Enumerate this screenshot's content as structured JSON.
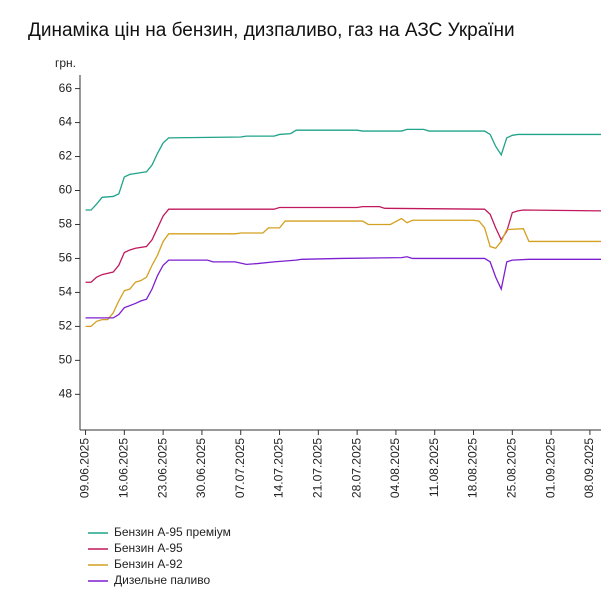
{
  "chart_data": {
    "type": "line",
    "title": "Динаміка цін на бензин, дизпаливо, газ на АЗС України",
    "y_label": "грн.",
    "xlim": [
      "08.06.2025",
      "10.09.2025"
    ],
    "xticks": [
      "09.06.2025",
      "16.06.2025",
      "23.06.2025",
      "30.06.2025",
      "07.07.2025",
      "14.07.2025",
      "21.07.2025",
      "28.07.2025",
      "04.08.2025",
      "11.08.2025",
      "18.08.2025",
      "25.08.2025",
      "01.09.2025",
      "08.09.2025"
    ],
    "ylim": [
      45.9,
      66.8
    ],
    "yticks": [
      48,
      50,
      52,
      54,
      56,
      58,
      60,
      62,
      64,
      66
    ],
    "legend": "bottom-left",
    "series": [
      {
        "name": "Бензин А-95 преміум",
        "color": "#1fa38a",
        "x": [
          "09.06.2025",
          "10.06.2025",
          "11.06.2025",
          "12.06.2025",
          "14.06.2025",
          "15.06.2025",
          "16.06.2025",
          "17.06.2025",
          "19.06.2025",
          "20.06.2025",
          "21.06.2025",
          "22.06.2025",
          "23.06.2025",
          "24.06.2025",
          "07.07.2025",
          "08.07.2025",
          "13.07.2025",
          "14.07.2025",
          "16.07.2025",
          "17.07.2025",
          "28.07.2025",
          "29.07.2025",
          "05.08.2025",
          "06.08.2025",
          "09.08.2025",
          "10.08.2025",
          "20.08.2025",
          "21.08.2025",
          "22.08.2025",
          "23.08.2025",
          "24.08.2025",
          "25.08.2025",
          "26.08.2025",
          "10.09.2025"
        ],
        "values": [
          58.85,
          58.85,
          59.2,
          59.6,
          59.65,
          59.8,
          60.8,
          60.95,
          61.05,
          61.1,
          61.5,
          62.2,
          62.8,
          63.1,
          63.15,
          63.2,
          63.2,
          63.3,
          63.35,
          63.55,
          63.55,
          63.5,
          63.5,
          63.6,
          63.6,
          63.5,
          63.5,
          63.3,
          62.6,
          62.1,
          63.1,
          63.25,
          63.3,
          63.3
        ]
      },
      {
        "name": "Бензин А-95",
        "color": "#c0185c",
        "x": [
          "09.06.2025",
          "10.06.2025",
          "11.06.2025",
          "12.06.2025",
          "14.06.2025",
          "15.06.2025",
          "16.06.2025",
          "17.06.2025",
          "18.06.2025",
          "20.06.2025",
          "21.06.2025",
          "22.06.2025",
          "23.06.2025",
          "24.06.2025",
          "13.07.2025",
          "14.07.2025",
          "28.07.2025",
          "29.07.2025",
          "01.08.2025",
          "02.08.2025",
          "20.08.2025",
          "21.08.2025",
          "22.08.2025",
          "23.08.2025",
          "24.08.2025",
          "25.08.2025",
          "26.08.2025",
          "27.08.2025",
          "10.09.2025"
        ],
        "values": [
          54.6,
          54.6,
          54.9,
          55.05,
          55.2,
          55.6,
          56.35,
          56.5,
          56.6,
          56.7,
          57.1,
          57.8,
          58.5,
          58.9,
          58.9,
          59.0,
          59.0,
          59.05,
          59.05,
          58.95,
          58.9,
          58.6,
          57.8,
          57.1,
          57.6,
          58.7,
          58.8,
          58.85,
          58.8
        ]
      },
      {
        "name": "Бензин А-92",
        "color": "#d4a020",
        "x": [
          "09.06.2025",
          "10.06.2025",
          "11.06.2025",
          "12.06.2025",
          "13.06.2025",
          "14.06.2025",
          "15.06.2025",
          "16.06.2025",
          "17.06.2025",
          "18.06.2025",
          "19.06.2025",
          "20.06.2025",
          "21.06.2025",
          "22.06.2025",
          "23.06.2025",
          "24.06.2025",
          "06.07.2025",
          "07.07.2025",
          "11.07.2025",
          "12.07.2025",
          "14.07.2025",
          "15.07.2025",
          "29.07.2025",
          "30.07.2025",
          "03.08.2025",
          "05.08.2025",
          "06.08.2025",
          "07.08.2025",
          "18.08.2025",
          "19.08.2025",
          "20.08.2025",
          "21.08.2025",
          "22.08.2025",
          "23.08.2025",
          "24.08.2025",
          "27.08.2025",
          "28.08.2025",
          "10.09.2025"
        ],
        "values": [
          52.0,
          52.0,
          52.3,
          52.4,
          52.4,
          52.8,
          53.5,
          54.1,
          54.2,
          54.6,
          54.7,
          54.9,
          55.6,
          56.2,
          57.0,
          57.45,
          57.45,
          57.5,
          57.5,
          57.8,
          57.8,
          58.2,
          58.2,
          58.0,
          58.0,
          58.35,
          58.1,
          58.25,
          58.25,
          58.2,
          57.8,
          56.7,
          56.6,
          57.0,
          57.7,
          57.75,
          57.0,
          57.0
        ]
      },
      {
        "name": "Дизельне паливо",
        "color": "#7d1fd0",
        "x": [
          "09.06.2025",
          "12.06.2025",
          "14.06.2025",
          "15.06.2025",
          "16.06.2025",
          "18.06.2025",
          "19.06.2025",
          "20.06.2025",
          "21.06.2025",
          "22.06.2025",
          "23.06.2025",
          "24.06.2025",
          "01.07.2025",
          "02.07.2025",
          "06.07.2025",
          "08.07.2025",
          "10.07.2025",
          "13.07.2025",
          "17.07.2025",
          "18.07.2025",
          "25.07.2025",
          "05.08.2025",
          "06.08.2025",
          "07.08.2025",
          "20.08.2025",
          "21.08.2025",
          "22.08.2025",
          "23.08.2025",
          "24.08.2025",
          "25.08.2025",
          "28.08.2025",
          "10.09.2025"
        ],
        "values": [
          52.5,
          52.5,
          52.5,
          52.7,
          53.1,
          53.35,
          53.5,
          53.6,
          54.2,
          55.0,
          55.6,
          55.9,
          55.9,
          55.8,
          55.8,
          55.65,
          55.7,
          55.8,
          55.9,
          55.95,
          56.0,
          56.05,
          56.1,
          56.0,
          56.0,
          55.8,
          54.9,
          54.2,
          55.8,
          55.9,
          55.95,
          55.95
        ]
      }
    ]
  }
}
